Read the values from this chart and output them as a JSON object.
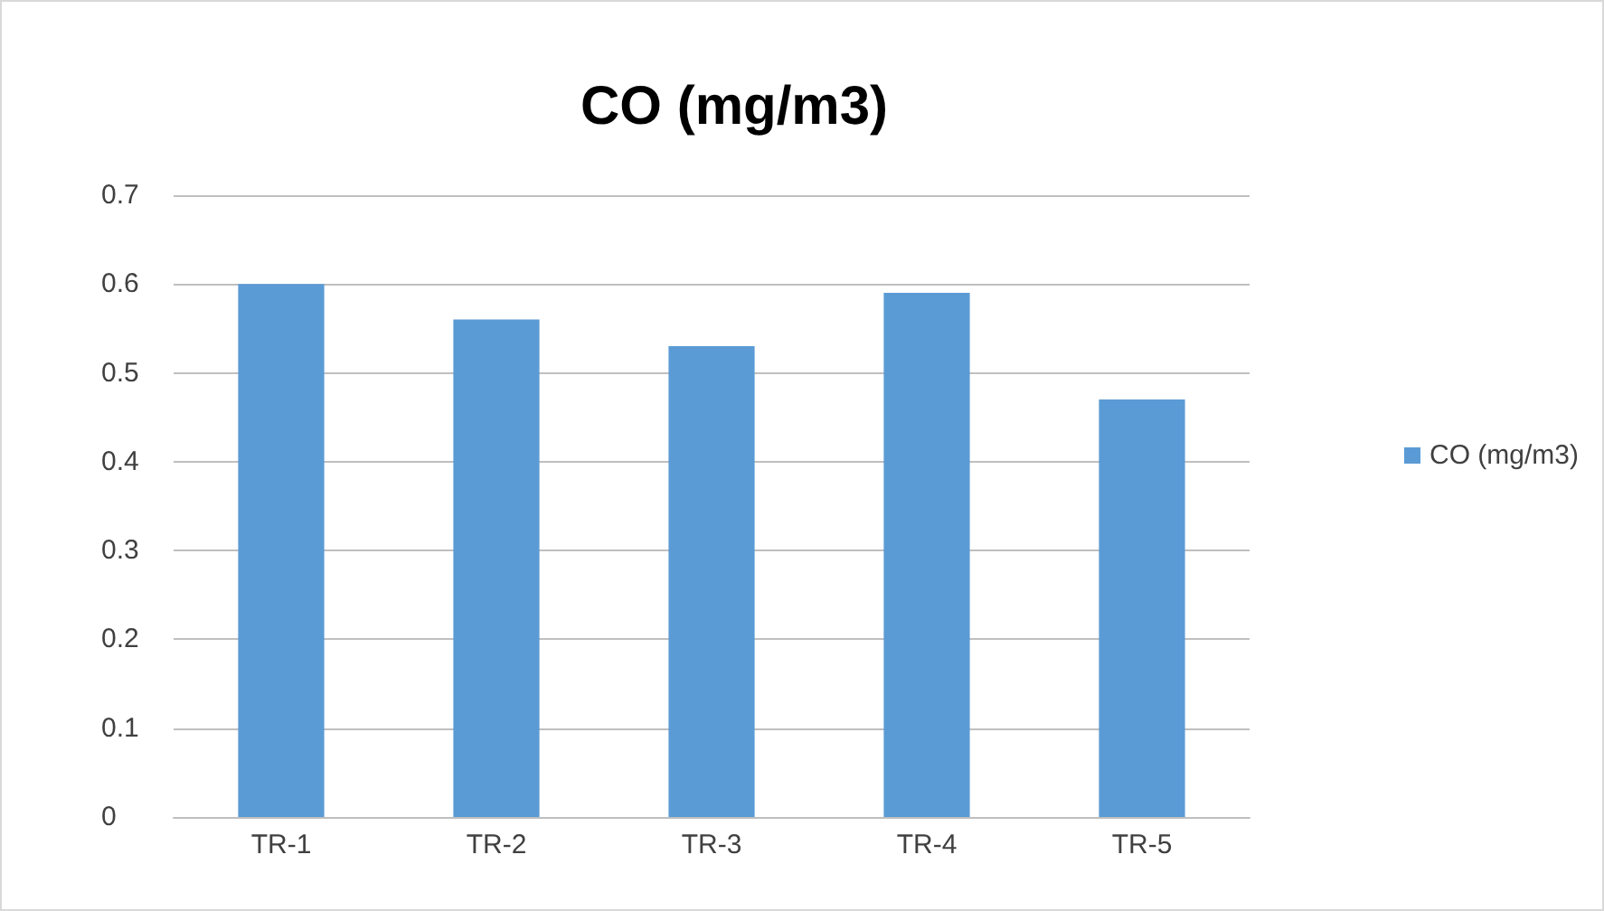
{
  "chart_data": {
    "type": "bar",
    "title": "CO (mg/m3)",
    "categories": [
      "TR-1",
      "TR-2",
      "TR-3",
      "TR-4",
      "TR-5"
    ],
    "series": [
      {
        "name": "CO (mg/m3)",
        "color": "#5b9bd5",
        "values": [
          0.6,
          0.56,
          0.53,
          0.59,
          0.47
        ]
      }
    ],
    "ylim": [
      0,
      0.7
    ],
    "yticks": [
      0,
      0.1,
      0.2,
      0.3,
      0.4,
      0.5,
      0.6,
      0.7
    ],
    "grid": "y",
    "legend": "right"
  }
}
